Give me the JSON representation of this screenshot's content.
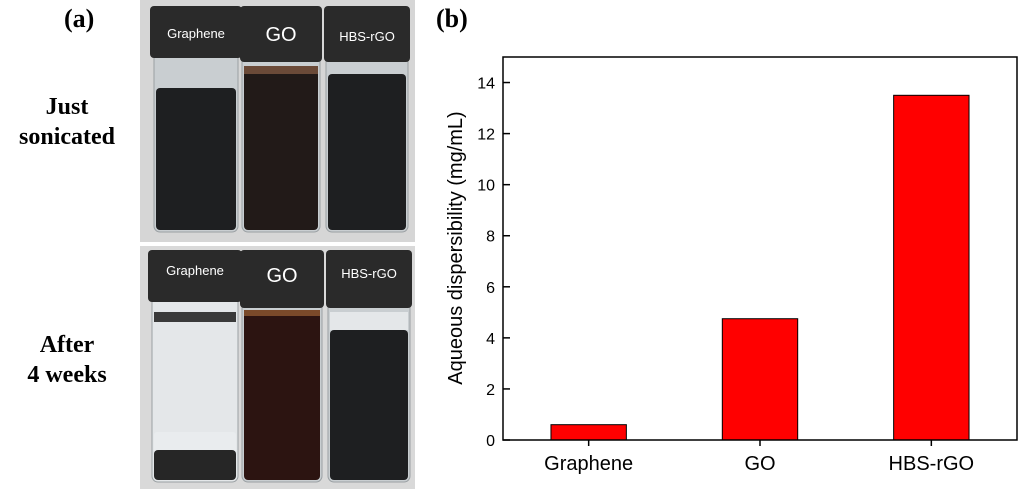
{
  "figure": {
    "panel_a_label": "(a)",
    "panel_b_label": "(b)",
    "row_labels": [
      {
        "line1": "Just",
        "line2": "sonicated"
      },
      {
        "line1": "After",
        "line2": "4 weeks"
      }
    ],
    "vial_labels_top": [
      "Graphene",
      "GO",
      "HBS-rGO"
    ],
    "vial_labels_bottom": [
      "Graphene",
      "GO",
      "HBS-rGO"
    ],
    "colors": {
      "cap": "#2a2a2a",
      "dark_liquid": "#1e1f21",
      "brown_liquid": "#2c1411",
      "clear_liquid": "#e4e7e9",
      "sediment": "#262626",
      "photo_bg": "#d9d9d9"
    }
  },
  "chart_data": {
    "type": "bar",
    "categories": [
      "Graphene",
      "GO",
      "HBS-rGO"
    ],
    "values": [
      0.6,
      4.75,
      13.5
    ],
    "ylabel": "Aqueous dispersibility (mg/mL)",
    "ylim": [
      0,
      15
    ],
    "yticks": [
      "0",
      "2",
      "4",
      "6",
      "8",
      "10",
      "12",
      "14"
    ],
    "bar_color": "#ff0000",
    "grid": false
  }
}
